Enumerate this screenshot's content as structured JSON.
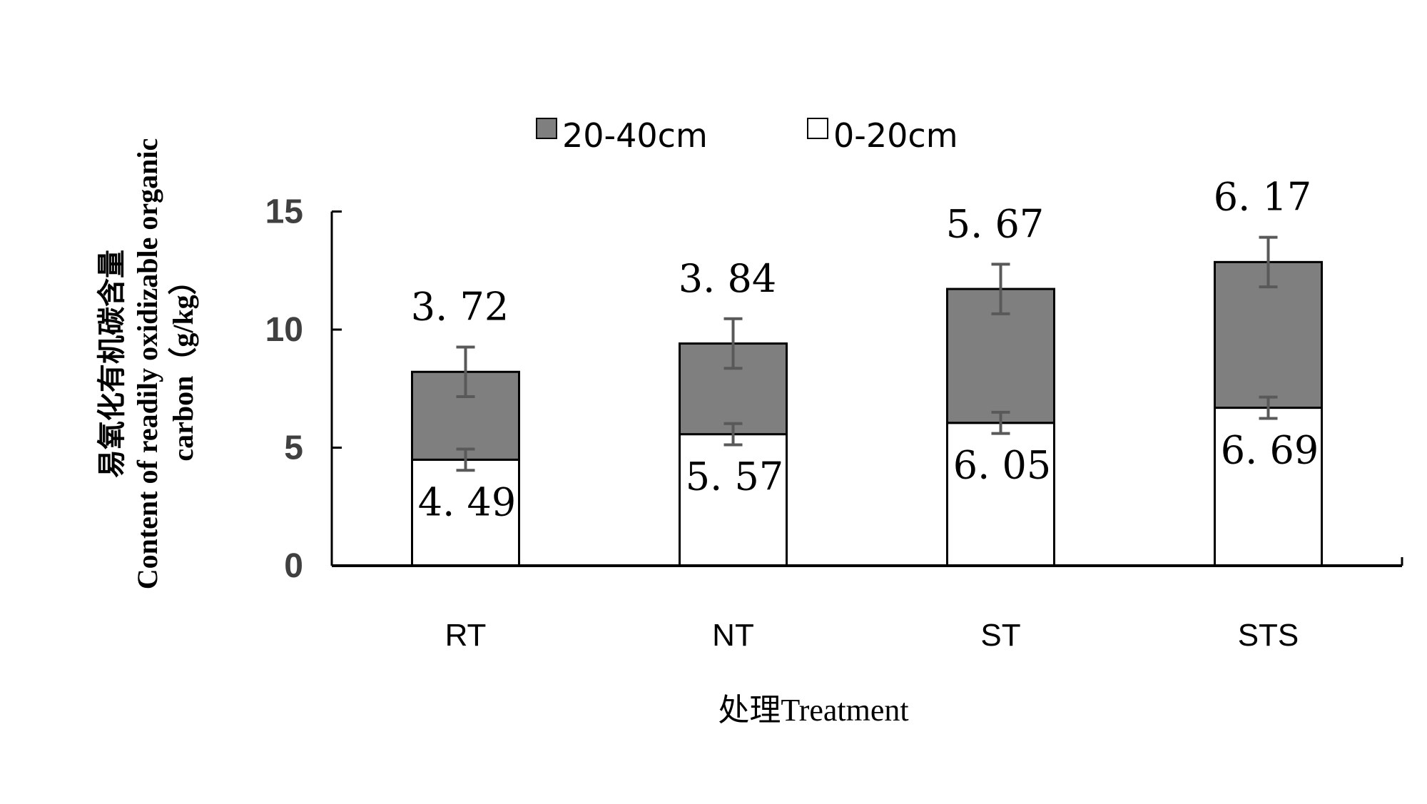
{
  "chart_data": {
    "type": "bar",
    "stacked": true,
    "categories": [
      "RT",
      "NT",
      "ST",
      "STS"
    ],
    "series": [
      {
        "name": "0-20cm",
        "values": [
          4.49,
          5.57,
          6.05,
          6.69
        ],
        "value_labels": [
          "4. 49",
          "5. 57",
          "6. 05",
          "6. 69"
        ],
        "errors": [
          0.45,
          0.45,
          0.45,
          0.45
        ],
        "color": "#ffffff"
      },
      {
        "name": "20-40cm",
        "values": [
          3.72,
          3.84,
          5.67,
          6.17
        ],
        "value_labels": [
          "3. 72",
          "3. 84",
          "5. 67",
          "6. 17"
        ],
        "errors": [
          1.05,
          1.05,
          1.05,
          1.05
        ],
        "color": "#7f7f7f"
      }
    ],
    "y_ticks": [
      "0",
      "5",
      "10",
      "15"
    ],
    "ylim": [
      0,
      15
    ],
    "xlabel": "处理Treatment",
    "ylabel_lines": [
      "易氧化有机碳含量",
      "Content of readily oxidizable organic",
      "carbon（g/kg）"
    ],
    "legend_position": "top",
    "grid": false,
    "error_bar_color": "#595959",
    "bar_outline_color": "#000000"
  }
}
